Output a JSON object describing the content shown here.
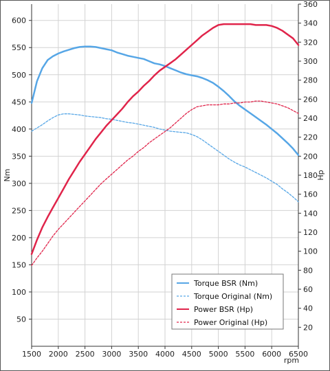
{
  "chart_data": {
    "type": "line",
    "xlabel": "rpm",
    "ylabel_left": "Nm",
    "ylabel_right": "Hp",
    "xlim": [
      1500,
      6500
    ],
    "ylim_left": [
      0,
      630
    ],
    "ylim_right": [
      0,
      360
    ],
    "x_ticks": [
      1500,
      2000,
      2500,
      3000,
      3500,
      4000,
      4500,
      5000,
      5500,
      6000,
      6500
    ],
    "y_ticks_left": [
      50,
      100,
      150,
      200,
      250,
      300,
      350,
      400,
      450,
      500,
      550,
      600
    ],
    "y_ticks_right": [
      20,
      40,
      60,
      80,
      100,
      120,
      140,
      160,
      180,
      200,
      220,
      240,
      260,
      280,
      300,
      320,
      340,
      360
    ],
    "grid": true,
    "legend_position": "bottom-right",
    "colors": {
      "blue": "#56a6e6",
      "red": "#e0244a"
    },
    "series": [
      {
        "name": "Torque BSR (Nm)",
        "axis": "left",
        "style": "solid",
        "color": "#56a6e6",
        "x": [
          1500,
          1600,
          1700,
          1800,
          1900,
          2000,
          2100,
          2200,
          2300,
          2400,
          2500,
          2600,
          2700,
          2800,
          2900,
          3000,
          3100,
          3200,
          3300,
          3400,
          3500,
          3600,
          3700,
          3800,
          3900,
          4000,
          4100,
          4200,
          4300,
          4400,
          4500,
          4600,
          4700,
          4800,
          4900,
          5000,
          5100,
          5200,
          5300,
          5400,
          5500,
          5600,
          5700,
          5800,
          5900,
          6000,
          6100,
          6200,
          6300,
          6400,
          6500
        ],
        "values": [
          448,
          488,
          512,
          527,
          534,
          539,
          543,
          546,
          549,
          551,
          552,
          552,
          551,
          549,
          547,
          545,
          541,
          538,
          535,
          533,
          531,
          529,
          525,
          521,
          519,
          516,
          512,
          508,
          504,
          501,
          499,
          497,
          494,
          490,
          485,
          478,
          470,
          461,
          451,
          443,
          436,
          429,
          422,
          415,
          408,
          400,
          392,
          383,
          374,
          364,
          352
        ]
      },
      {
        "name": "Torque Original (Nm)",
        "axis": "left",
        "style": "dashed",
        "color": "#56a6e6",
        "x": [
          1500,
          1600,
          1700,
          1800,
          1900,
          2000,
          2100,
          2200,
          2300,
          2400,
          2500,
          2600,
          2700,
          2800,
          2900,
          3000,
          3100,
          3200,
          3300,
          3400,
          3500,
          3600,
          3700,
          3800,
          3900,
          4000,
          4100,
          4200,
          4300,
          4400,
          4500,
          4600,
          4700,
          4800,
          4900,
          5000,
          5100,
          5200,
          5300,
          5400,
          5500,
          5600,
          5700,
          5800,
          5900,
          6000,
          6100,
          6200,
          6300,
          6400,
          6500
        ],
        "values": [
          396,
          402,
          408,
          415,
          421,
          426,
          428,
          428,
          427,
          426,
          424,
          423,
          422,
          421,
          419,
          418,
          416,
          414,
          412,
          411,
          409,
          407,
          405,
          403,
          400,
          398,
          396,
          395,
          394,
          393,
          390,
          386,
          380,
          373,
          366,
          359,
          352,
          345,
          339,
          334,
          330,
          325,
          320,
          315,
          310,
          304,
          298,
          290,
          283,
          275,
          266
        ]
      },
      {
        "name": "Power BSR (Hp)",
        "axis": "right",
        "style": "solid",
        "color": "#e0244a",
        "x": [
          1500,
          1600,
          1700,
          1800,
          1900,
          2000,
          2100,
          2200,
          2300,
          2400,
          2500,
          2600,
          2700,
          2800,
          2900,
          3000,
          3100,
          3200,
          3300,
          3400,
          3500,
          3600,
          3700,
          3800,
          3900,
          4000,
          4100,
          4200,
          4300,
          4400,
          4500,
          4600,
          4700,
          4800,
          4900,
          5000,
          5100,
          5200,
          5300,
          5400,
          5500,
          5600,
          5700,
          5800,
          5900,
          6000,
          6100,
          6200,
          6300,
          6400,
          6500
        ],
        "values": [
          97,
          112,
          125,
          136,
          146,
          156,
          166,
          176,
          185,
          194,
          202,
          210,
          218,
          225,
          232,
          238,
          244,
          250,
          257,
          263,
          268,
          274,
          279,
          285,
          290,
          294,
          298,
          302,
          307,
          312,
          317,
          322,
          327,
          331,
          335,
          338,
          339,
          339,
          339,
          339,
          339,
          339,
          338,
          338,
          338,
          337,
          335,
          332,
          328,
          324,
          317
        ]
      },
      {
        "name": "Power Original (Hp)",
        "axis": "right",
        "style": "dashed",
        "color": "#e0244a",
        "x": [
          1500,
          1600,
          1700,
          1800,
          1900,
          2000,
          2100,
          2200,
          2300,
          2400,
          2500,
          2600,
          2700,
          2800,
          2900,
          3000,
          3100,
          3200,
          3300,
          3400,
          3500,
          3600,
          3700,
          3800,
          3900,
          4000,
          4100,
          4200,
          4300,
          4400,
          4500,
          4600,
          4700,
          4800,
          4900,
          5000,
          5100,
          5200,
          5300,
          5400,
          5500,
          5600,
          5700,
          5800,
          5900,
          6000,
          6100,
          6200,
          6300,
          6400,
          6500
        ],
        "values": [
          85,
          93,
          100,
          108,
          116,
          123,
          129,
          135,
          141,
          147,
          153,
          159,
          165,
          171,
          176,
          181,
          186,
          191,
          196,
          200,
          205,
          209,
          214,
          218,
          222,
          226,
          230,
          235,
          240,
          245,
          249,
          252,
          253,
          254,
          254,
          254,
          255,
          255,
          256,
          256,
          257,
          257,
          258,
          258,
          257,
          256,
          255,
          253,
          251,
          248,
          245
        ]
      }
    ]
  }
}
